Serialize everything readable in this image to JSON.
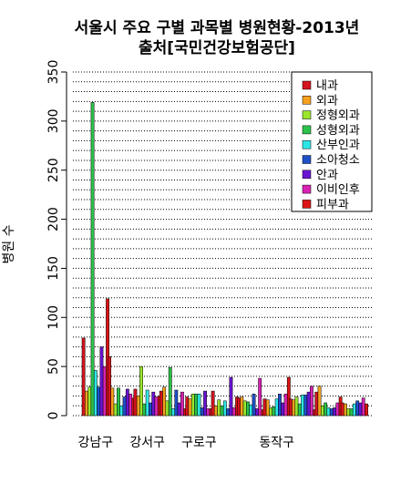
{
  "chart_data": {
    "type": "bar",
    "title": "서울시 주요 구별 과목별 병원현황-2013년",
    "subtitle": "출처[국민건강보험공단]",
    "xlabel": "",
    "ylabel": "병원 수",
    "ylim": [
      0,
      350
    ],
    "yticks": [
      0,
      50,
      100,
      150,
      200,
      250,
      300,
      350
    ],
    "grid": "horizontal dotted",
    "legend_position": "top-right",
    "categories": [
      "강남구",
      "",
      "강서구",
      "",
      "구로구",
      "",
      "",
      "동작구",
      "",
      "",
      ""
    ],
    "series": [
      {
        "name": "내과",
        "color": "#d4141e",
        "values": [
          79,
          60,
          27,
          25,
          19,
          25,
          18,
          17,
          17,
          24,
          13
        ]
      },
      {
        "name": "외과",
        "color": "#f5a01e",
        "values": [
          25,
          28,
          20,
          29,
          17,
          10,
          19,
          16,
          16,
          30,
          12
        ]
      },
      {
        "name": "정형외과",
        "color": "#9be62d",
        "values": [
          29,
          12,
          50,
          15,
          22,
          16,
          15,
          8,
          19,
          10,
          7
        ]
      },
      {
        "name": "성형외과",
        "color": "#2bc24a",
        "values": [
          319,
          28,
          12,
          49,
          22,
          10,
          14,
          9,
          12,
          13,
          7
        ]
      },
      {
        "name": "산부인과",
        "color": "#2ee6e6",
        "values": [
          46,
          10,
          26,
          7,
          22,
          15,
          11,
          17,
          21,
          8,
          12
        ]
      },
      {
        "name": "소아청소",
        "color": "#1f50c8",
        "values": [
          29,
          19,
          13,
          26,
          8,
          7,
          22,
          22,
          21,
          7,
          15
        ]
      },
      {
        "name": "안과",
        "color": "#6a14d2",
        "values": [
          70,
          27,
          24,
          13,
          25,
          39,
          7,
          13,
          24,
          8,
          13
        ]
      },
      {
        "name": "이비인후",
        "color": "#d823b4",
        "values": [
          50,
          22,
          19,
          24,
          7,
          8,
          38,
          22,
          30,
          13,
          18
        ]
      },
      {
        "name": "피부과",
        "color": "#dc1414",
        "values": [
          119,
          18,
          20,
          7,
          7,
          19,
          6,
          39,
          6,
          19,
          12
        ]
      }
    ]
  }
}
